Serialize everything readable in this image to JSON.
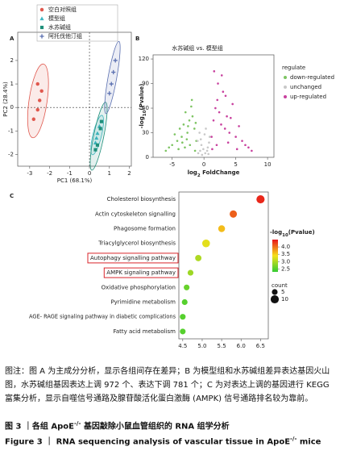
{
  "chart_data": [
    {
      "type": "scatter",
      "panel_label": "A",
      "xlabel": "PC1 (68.1%)",
      "ylabel": "PC2 (28.4%)",
      "xlim": [
        -3.6,
        2.1
      ],
      "ylim": [
        -2.5,
        3.2
      ],
      "xticks": [
        -3,
        -2,
        -1,
        0,
        1,
        2
      ],
      "yticks": [
        -2,
        -1,
        0,
        1,
        2
      ],
      "series": [
        {
          "name": "空白对照组",
          "color": "#e0584e",
          "marker": "circle",
          "x": [
            -2.8,
            -2.6,
            -2.5,
            -2.4,
            -2.6
          ],
          "y": [
            -0.5,
            -0.1,
            0.3,
            0.7,
            1.0
          ]
        },
        {
          "name": "模型组",
          "color": "#3fb8c4",
          "marker": "triangle",
          "x": [
            0.3,
            0.4,
            0.5,
            0.35
          ],
          "y": [
            -1.5,
            -1.1,
            -0.8,
            -1.3
          ]
        },
        {
          "name": "水苏碱组",
          "color": "#1f8f7a",
          "marker": "square",
          "x": [
            0.4,
            0.55,
            0.3,
            0.6
          ],
          "y": [
            -1.6,
            -0.9,
            -1.8,
            -0.6
          ]
        },
        {
          "name": "阿托伐他汀组",
          "color": "#5a6fb0",
          "marker": "cross",
          "x": [
            1.0,
            1.1,
            1.2,
            1.3
          ],
          "y": [
            0.6,
            1.0,
            1.5,
            2.0
          ]
        }
      ]
    },
    {
      "type": "scatter",
      "panel_label": "B",
      "title": "水苏碱组 vs. 模型组",
      "xlabel": [
        "log",
        "2",
        " FoldChange"
      ],
      "ylabel": [
        "-log",
        "10",
        "(Pvalue)"
      ],
      "xlim": [
        -8,
        11
      ],
      "ylim": [
        0,
        125
      ],
      "xticks": [
        -5,
        0,
        5,
        10
      ],
      "yticks": [
        0,
        30,
        60,
        90,
        120
      ],
      "legend_title": "regulate",
      "series": [
        {
          "name": "down-regulated",
          "color": "#7dc462",
          "x": [
            -1.2,
            -1.5,
            -1.8,
            -2.0,
            -2.3,
            -2.6,
            -2.9,
            -3.2,
            -3.5,
            -3.8,
            -4.2,
            -4.6,
            -5.0,
            -5.5,
            -6.0,
            -1.4,
            -2.2,
            -3.0,
            -1.9,
            -2.7,
            -4.0,
            -1.3,
            -2.5,
            -3.4
          ],
          "y": [
            20,
            35,
            50,
            62,
            45,
            30,
            55,
            40,
            25,
            35,
            20,
            28,
            15,
            12,
            8,
            8,
            15,
            12,
            70,
            22,
            10,
            42,
            38,
            18
          ]
        },
        {
          "name": "unchanged",
          "color": "#c8c8c8",
          "x": [
            -1.0,
            -0.7,
            -0.4,
            -0.1,
            0.2,
            0.5,
            0.8,
            -0.9,
            -0.5,
            0.1,
            0.6,
            0.9,
            -0.3,
            0.3,
            -0.6,
            0.7
          ],
          "y": [
            20,
            30,
            15,
            10,
            5,
            8,
            18,
            5,
            22,
            28,
            12,
            25,
            3,
            35,
            8,
            4
          ]
        },
        {
          "name": "up-regulated",
          "color": "#c8419e",
          "x": [
            1.2,
            1.5,
            1.8,
            2.1,
            2.4,
            2.7,
            3.0,
            3.3,
            3.6,
            4.0,
            4.5,
            5.0,
            5.5,
            6.0,
            6.5,
            7.0,
            7.5,
            1.6,
            2.2,
            2.8,
            3.4,
            4.2,
            5.2,
            1.3,
            2.0,
            3.8
          ],
          "y": [
            25,
            45,
            60,
            70,
            55,
            40,
            80,
            35,
            50,
            30,
            65,
            25,
            38,
            20,
            15,
            12,
            8,
            105,
            90,
            100,
            75,
            48,
            10,
            10,
            15,
            18
          ]
        }
      ]
    },
    {
      "type": "bubble",
      "panel_label": "C",
      "categories": [
        "Cholesterol biosynthesis",
        "Actin cytoskeleton signalling",
        "Phagosome formation",
        "Triacylglycerol biosynthesis",
        "Autophagy signalling pathway",
        "AMPK signaling pathway",
        "Oxidative phosphorylation",
        "Pyrimidine metabolism",
        "AGE- RAGE signaling pathway in diabetic complications",
        "Fatty acid metabolism"
      ],
      "values": [
        6.5,
        5.8,
        5.5,
        5.1,
        4.9,
        4.7,
        4.6,
        4.55,
        4.5,
        4.5
      ],
      "color_values": [
        4.4,
        4.1,
        3.6,
        3.3,
        3.0,
        2.9,
        2.6,
        2.5,
        2.5,
        2.5
      ],
      "sizes": [
        10,
        8,
        7,
        9,
        6,
        5,
        5,
        5,
        5,
        5
      ],
      "xlim": [
        4.4,
        6.7
      ],
      "xticks": [
        4.5,
        {
          "value": 5,
          "label": "5.0"
        },
        5.5,
        {
          "value": 6,
          "label": "6.0"
        },
        6.5
      ],
      "highlight": [
        4,
        5
      ],
      "colorbar": {
        "title": [
          "-log",
          "10",
          "(Pvalue)"
        ],
        "lim": [
          2.3,
          4.5
        ],
        "colors": [
          "#33cc33",
          "#f5e11a",
          "#e8141a"
        ],
        "ticks": [
          2.5,
          {
            "value": 3,
            "label": "3.0"
          },
          3.5,
          {
            "value": 4,
            "label": "4.0"
          }
        ]
      },
      "size_legend": {
        "title": "count",
        "values": [
          5,
          10
        ]
      }
    }
  ],
  "caption": {
    "note": "图注：图 A 为主成分分析，显示各组间存在差异；B 为模型组和水苏碱组差异表达基因火山图，水苏碱组基因表达上调 972 个、表达下调 781 个；C 为对表达上调的基因进行 KEGG 富集分析，显示自噬信号通路及腺苷酸活化蛋白激酶 (AMPK) 信号通路排名较为靠前。",
    "title_cn": [
      "图 3 ｜各组 ApoE",
      "-/-",
      " 基因敲除小鼠血管组织的 RNA 组学分析"
    ],
    "title_en": [
      "Figure 3 ｜ RNA sequencing analysis of vascular tissue in ApoE",
      "-/-",
      " mice"
    ]
  }
}
